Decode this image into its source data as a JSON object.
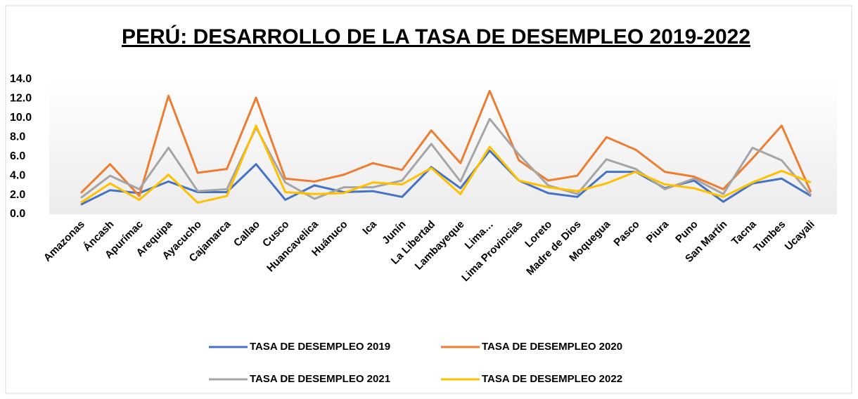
{
  "chart_data": {
    "type": "line",
    "title": "PERÚ: DESARROLLO DE LA TASA DE DESEMPLEO 2019-2022",
    "categories": [
      "Amazonas",
      "Áncash",
      "Apurímac",
      "Arequipa",
      "Ayacucho",
      "Cajamarca",
      "Callao",
      "Cusco",
      "Huancavelica",
      "Huánuco",
      "Ica",
      "Junín",
      "La Libertad",
      "Lambayeque",
      "Lima…",
      "Lima Provincias",
      "Loreto",
      "Madre de Dios",
      "Moquegua",
      "Pasco",
      "Piura",
      "Puno",
      "San Martín",
      "Tacna",
      "Tumbes",
      "Ucayali"
    ],
    "series": [
      {
        "name": "TASA DE DESEMPLEO 2019",
        "color": "#4472c4",
        "values": [
          1.0,
          2.5,
          2.2,
          3.4,
          2.3,
          2.3,
          5.2,
          1.5,
          3.0,
          2.3,
          2.4,
          1.8,
          4.9,
          2.7,
          6.6,
          3.5,
          2.2,
          1.8,
          4.4,
          4.4,
          2.7,
          3.5,
          1.3,
          3.2,
          3.7,
          1.9
        ]
      },
      {
        "name": "TASA DE DESEMPLEO 2020",
        "color": "#ed7d31",
        "values": [
          2.2,
          5.2,
          1.9,
          12.3,
          4.3,
          4.7,
          12.1,
          3.7,
          3.4,
          4.1,
          5.3,
          4.6,
          8.7,
          5.3,
          12.8,
          5.6,
          3.5,
          4.0,
          8.0,
          6.7,
          4.4,
          3.9,
          2.6,
          5.8,
          9.2,
          2.3
        ]
      },
      {
        "name": "TASA DE DESEMPLEO 2021",
        "color": "#a5a5a5",
        "values": [
          1.7,
          4.0,
          2.6,
          6.9,
          2.4,
          2.6,
          9.0,
          3.3,
          1.6,
          2.8,
          2.8,
          3.5,
          7.3,
          3.4,
          9.9,
          6.2,
          3.0,
          2.1,
          5.7,
          4.7,
          2.6,
          3.7,
          2.1,
          6.9,
          5.6,
          2.0
        ]
      },
      {
        "name": "TASA DE DESEMPLEO 2022",
        "color": "#ffc000",
        "values": [
          1.2,
          3.2,
          1.5,
          4.1,
          1.2,
          1.9,
          9.2,
          2.3,
          2.1,
          2.2,
          3.3,
          3.1,
          4.8,
          2.1,
          7.0,
          3.5,
          2.8,
          2.4,
          3.2,
          4.4,
          3.1,
          2.7,
          1.8,
          3.3,
          4.5,
          3.3
        ]
      }
    ],
    "ylim": [
      0,
      14
    ],
    "yticks": [
      {
        "value": 0,
        "label": "0.0"
      },
      {
        "value": 2,
        "label": "2.0"
      },
      {
        "value": 4,
        "label": "4.0"
      },
      {
        "value": 6,
        "label": "6.0"
      },
      {
        "value": 8,
        "label": "8.0"
      },
      {
        "value": 10,
        "label": "10.0"
      },
      {
        "value": 12,
        "label": "12.0"
      },
      {
        "value": 14,
        "label": "14.0"
      }
    ],
    "grid": false,
    "legend": "bottom"
  }
}
